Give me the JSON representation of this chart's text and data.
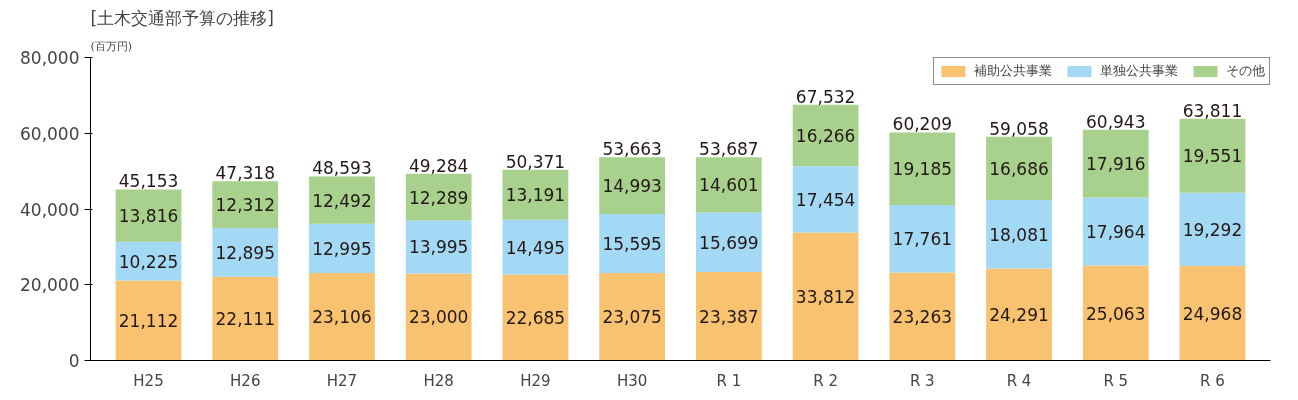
{
  "chart_data": {
    "type": "bar",
    "title": "[土木交通部予算の推移]",
    "ylabel": "(百万円)",
    "stacked": true,
    "categories": [
      "H25",
      "H26",
      "H27",
      "H28",
      "H29",
      "H30",
      "R 1",
      "R 2",
      "R 3",
      "R 4",
      "R 5",
      "R 6"
    ],
    "series": [
      {
        "name": "補助公共事業",
        "color": "#f8c271",
        "values": [
          21112,
          22111,
          23106,
          23000,
          22685,
          23075,
          23387,
          33812,
          23263,
          24291,
          25063,
          24968
        ],
        "value_labels": [
          "21,112",
          "22,111",
          "23,106",
          "23,000",
          "22,685",
          "23,075",
          "23,387",
          "33,812",
          "23,263",
          "24,291",
          "25,063",
          "24,968"
        ]
      },
      {
        "name": "単独公共事業",
        "color": "#a3d9f5",
        "values": [
          10225,
          12895,
          12995,
          13995,
          14495,
          15595,
          15699,
          17454,
          17761,
          18081,
          17964,
          19292
        ],
        "value_labels": [
          "10,225",
          "12,895",
          "12,995",
          "13,995",
          "14,495",
          "15,595",
          "15,699",
          "17,454",
          "17,761",
          "18,081",
          "17,964",
          "19,292"
        ]
      },
      {
        "name": "その他",
        "color": "#a9d18e",
        "values": [
          13816,
          12312,
          12492,
          12289,
          13191,
          14993,
          14601,
          16266,
          19185,
          16686,
          17916,
          19551
        ],
        "value_labels": [
          "13,816",
          "12,312",
          "12,492",
          "12,289",
          "13,191",
          "14,993",
          "14,601",
          "16,266",
          "19,185",
          "16,686",
          "17,916",
          "19,551"
        ]
      }
    ],
    "totals": [
      "45,153",
      "47,318",
      "48,593",
      "49,284",
      "50,371",
      "53,663",
      "53,687",
      "67,532",
      "60,209",
      "59,058",
      "60,943",
      "63,811"
    ],
    "ylim": [
      0,
      80000
    ],
    "yticks": [
      {
        "value": 0,
        "label": "0"
      },
      {
        "value": 20000,
        "label": "20,000"
      },
      {
        "value": 40000,
        "label": "40,000"
      },
      {
        "value": 60000,
        "label": "60,000"
      },
      {
        "value": 80000,
        "label": "80,000"
      }
    ],
    "legend": "top right",
    "grid": false
  }
}
